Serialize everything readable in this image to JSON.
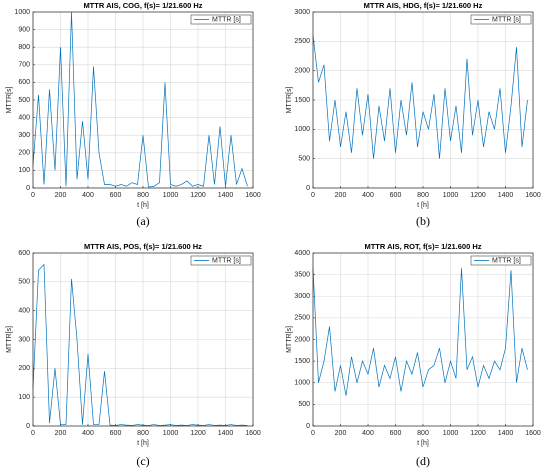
{
  "chart_data": [
    {
      "type": "line",
      "title": "MTTR AIS, COG, f(s)= 1/21.600 Hz",
      "x_label": "t [h]",
      "y_label": "MTTR[s]",
      "panel_label": "(a)",
      "grid": true,
      "legend": "upper right",
      "x": [
        0,
        40,
        80,
        120,
        160,
        200,
        240,
        280,
        320,
        360,
        400,
        440,
        480,
        520,
        560,
        600,
        640,
        680,
        720,
        760,
        800,
        840,
        880,
        920,
        960,
        1000,
        1040,
        1080,
        1120,
        1160,
        1200,
        1240,
        1280,
        1320,
        1360,
        1400,
        1440,
        1480,
        1520,
        1560
      ],
      "series": [
        {
          "name": "MTTR [s]",
          "color": "#0072bd",
          "values": [
            130,
            530,
            20,
            560,
            100,
            800,
            10,
            1000,
            50,
            380,
            50,
            690,
            200,
            20,
            20,
            10,
            20,
            10,
            30,
            20,
            300,
            5,
            10,
            30,
            600,
            20,
            10,
            20,
            40,
            10,
            20,
            10,
            300,
            20,
            350,
            10,
            300,
            20,
            110,
            10
          ]
        }
      ],
      "xlim": [
        0,
        1600
      ],
      "xticks": [
        0,
        200,
        400,
        600,
        800,
        1000,
        1200,
        1400,
        1600
      ],
      "ylim": [
        0,
        1000
      ],
      "yticks": [
        0,
        100,
        200,
        300,
        400,
        500,
        600,
        700,
        800,
        900,
        1000
      ]
    },
    {
      "type": "line",
      "title": "MTTR AIS, HDG, f(s)= 1/21.600 Hz",
      "x_label": "t [h]",
      "y_label": "MTTR[s]",
      "panel_label": "(b)",
      "grid": true,
      "legend": "upper right",
      "x": [
        0,
        40,
        80,
        120,
        160,
        200,
        240,
        280,
        320,
        360,
        400,
        440,
        480,
        520,
        560,
        600,
        640,
        680,
        720,
        760,
        800,
        840,
        880,
        920,
        960,
        1000,
        1040,
        1080,
        1120,
        1160,
        1200,
        1240,
        1280,
        1320,
        1360,
        1400,
        1440,
        1480,
        1520,
        1560
      ],
      "series": [
        {
          "name": "MTTR [s]",
          "color": "#0072bd",
          "values": [
            2600,
            1800,
            2100,
            800,
            1500,
            700,
            1300,
            600,
            1700,
            900,
            1600,
            500,
            1400,
            800,
            1700,
            600,
            1500,
            900,
            1800,
            700,
            1300,
            1000,
            1600,
            500,
            1700,
            800,
            1400,
            600,
            2200,
            900,
            1500,
            700,
            1300,
            1000,
            1700,
            600,
            1400,
            2400,
            700,
            1500
          ]
        }
      ],
      "xlim": [
        0,
        1600
      ],
      "xticks": [
        0,
        200,
        400,
        600,
        800,
        1000,
        1200,
        1400,
        1600
      ],
      "ylim": [
        0,
        3000
      ],
      "yticks": [
        0,
        500,
        1000,
        1500,
        2000,
        2500,
        3000
      ]
    },
    {
      "type": "line",
      "title": "MTTR AIS, POS, f(s)= 1/21.600 Hz",
      "x_label": "t [h]",
      "y_label": "MTTR[s]",
      "panel_label": "(c)",
      "grid": true,
      "legend": "upper right",
      "x": [
        0,
        40,
        80,
        120,
        160,
        200,
        240,
        280,
        320,
        360,
        400,
        440,
        480,
        520,
        560,
        600,
        640,
        680,
        720,
        760,
        800,
        840,
        880,
        920,
        960,
        1000,
        1040,
        1080,
        1120,
        1160,
        1200,
        1240,
        1280,
        1320,
        1360,
        1400,
        1440,
        1480,
        1520,
        1560
      ],
      "series": [
        {
          "name": "MTTR [s]",
          "color": "#0072bd",
          "values": [
            130,
            540,
            560,
            10,
            200,
            5,
            5,
            510,
            300,
            5,
            250,
            5,
            5,
            190,
            3,
            2,
            5,
            3,
            2,
            5,
            3,
            2,
            5,
            2,
            3,
            5,
            2,
            3,
            2,
            5,
            3,
            2,
            5,
            2,
            3,
            2,
            5,
            2,
            3,
            2
          ]
        }
      ],
      "xlim": [
        0,
        1600
      ],
      "xticks": [
        0,
        200,
        400,
        600,
        800,
        1000,
        1200,
        1400,
        1600
      ],
      "ylim": [
        0,
        600
      ],
      "yticks": [
        0,
        100,
        200,
        300,
        400,
        500,
        600
      ]
    },
    {
      "type": "line",
      "title": "MTTR AIS, ROT, f(s)= 1/21.600 Hz",
      "x_label": "t [h]",
      "y_label": "MTTR[s]",
      "panel_label": "(d)",
      "grid": true,
      "legend": "upper right",
      "x": [
        0,
        40,
        80,
        120,
        160,
        200,
        240,
        280,
        320,
        360,
        400,
        440,
        480,
        520,
        560,
        600,
        640,
        680,
        720,
        760,
        800,
        840,
        880,
        920,
        960,
        1000,
        1040,
        1080,
        1120,
        1160,
        1200,
        1240,
        1280,
        1320,
        1360,
        1400,
        1440,
        1480,
        1520,
        1560
      ],
      "series": [
        {
          "name": "MTTR [s]",
          "color": "#0072bd",
          "values": [
            3650,
            1000,
            1500,
            2300,
            800,
            1400,
            700,
            1600,
            1000,
            1500,
            1200,
            1800,
            900,
            1400,
            1100,
            1600,
            800,
            1500,
            1200,
            1700,
            900,
            1300,
            1400,
            1800,
            1000,
            1500,
            1100,
            3650,
            1300,
            1600,
            900,
            1400,
            1100,
            1500,
            1300,
            1800,
            3600,
            1000,
            1800,
            1300
          ]
        }
      ],
      "xlim": [
        0,
        1600
      ],
      "xticks": [
        0,
        200,
        400,
        600,
        800,
        1000,
        1200,
        1400,
        1600
      ],
      "ylim": [
        0,
        4000
      ],
      "yticks": [
        0,
        500,
        1000,
        1500,
        2000,
        2500,
        3000,
        3500,
        4000
      ]
    }
  ]
}
